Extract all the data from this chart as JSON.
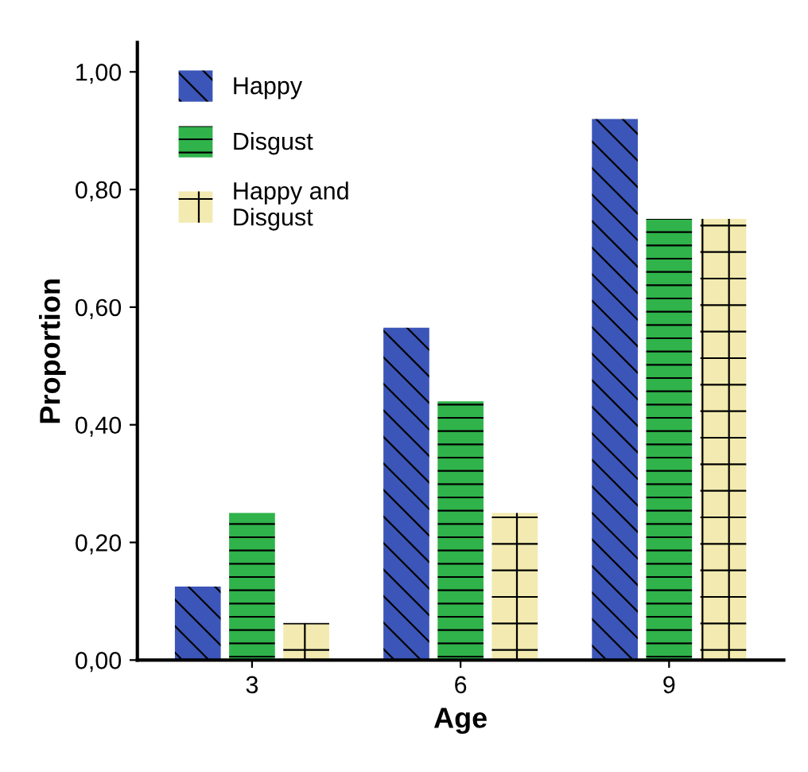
{
  "chart_data": {
    "type": "bar",
    "xlabel": "Age",
    "ylabel": "Proportion",
    "categories": [
      "3",
      "6",
      "9"
    ],
    "series": [
      {
        "name": "Happy",
        "color": "#3b56b8",
        "values": [
          0.125,
          0.565,
          0.92
        ]
      },
      {
        "name": "Disgust",
        "color": "#2fb34a",
        "values": [
          0.25,
          0.44,
          0.75
        ]
      },
      {
        "name": "Happy and\nDisgust",
        "color": "#f2eab0",
        "values": [
          0.063,
          0.25,
          0.75
        ]
      }
    ],
    "ylim": [
      0,
      1.05
    ],
    "yticks": [
      {
        "value": 0,
        "label": "0,00"
      },
      {
        "value": 0.2,
        "label": "0,20"
      },
      {
        "value": 0.4,
        "label": "0,40"
      },
      {
        "value": 0.6,
        "label": "0,60"
      },
      {
        "value": 0.8,
        "label": "0,80"
      },
      {
        "value": 1.0,
        "label": "1,00"
      }
    ],
    "grid": false,
    "legend": "top left"
  }
}
